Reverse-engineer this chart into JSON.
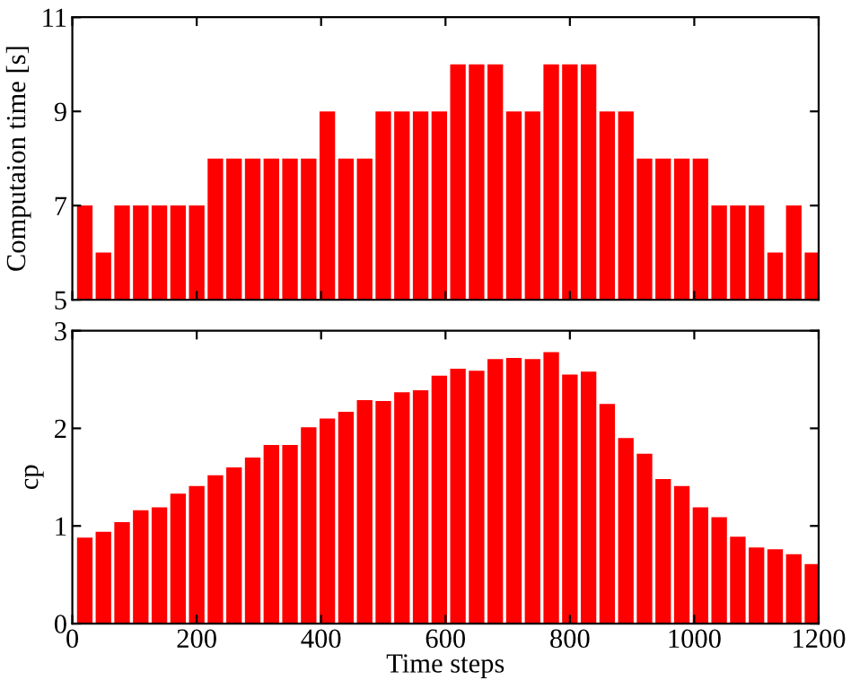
{
  "chart_data": [
    {
      "type": "bar",
      "ylabel": "Computaion time [s]",
      "x": [
        20,
        50,
        80,
        110,
        140,
        170,
        200,
        230,
        260,
        290,
        320,
        350,
        380,
        410,
        440,
        470,
        500,
        530,
        560,
        590,
        620,
        650,
        680,
        710,
        740,
        770,
        800,
        830,
        860,
        890,
        920,
        950,
        980,
        1010,
        1040,
        1070,
        1100,
        1130,
        1160,
        1190
      ],
      "series": [
        {
          "color": "#ff0000",
          "values": [
            7,
            6,
            7,
            7,
            7,
            7,
            7,
            8,
            8,
            8,
            8,
            8,
            8,
            9,
            8,
            8,
            9,
            9,
            9,
            9,
            10,
            10,
            10,
            9,
            9,
            10,
            10,
            10,
            9,
            9,
            8,
            8,
            8,
            8,
            7,
            7,
            7,
            6,
            7,
            6
          ]
        }
      ],
      "xlim": [
        0,
        1200
      ],
      "xticks": [
        0,
        200,
        400,
        600,
        800,
        1000,
        1200
      ],
      "ylim": [
        5,
        11
      ],
      "yticks": [
        5,
        7,
        9,
        11
      ],
      "tick_labels": "y",
      "grid": false,
      "legend": false
    },
    {
      "type": "bar",
      "ylabel": "cp",
      "xlabel": "Time steps",
      "x": [
        20,
        50,
        80,
        110,
        140,
        170,
        200,
        230,
        260,
        290,
        320,
        350,
        380,
        410,
        440,
        470,
        500,
        530,
        560,
        590,
        620,
        650,
        680,
        710,
        740,
        770,
        800,
        830,
        860,
        890,
        920,
        950,
        980,
        1010,
        1040,
        1070,
        1100,
        1130,
        1160,
        1190
      ],
      "series": [
        {
          "color": "#ff0000",
          "values": [
            0.88,
            0.94,
            1.04,
            1.16,
            1.19,
            1.33,
            1.41,
            1.52,
            1.6,
            1.7,
            1.83,
            1.83,
            2.01,
            2.1,
            2.17,
            2.29,
            2.28,
            2.37,
            2.39,
            2.54,
            2.61,
            2.59,
            2.71,
            2.72,
            2.71,
            2.78,
            2.55,
            2.58,
            2.25,
            1.9,
            1.74,
            1.48,
            1.41,
            1.19,
            1.09,
            0.89,
            0.78,
            0.76,
            0.71,
            0.61
          ]
        }
      ],
      "xlim": [
        0,
        1200
      ],
      "xticks": [
        0,
        200,
        400,
        600,
        800,
        1000,
        1200
      ],
      "ylim": [
        0,
        3
      ],
      "yticks": [
        0,
        1,
        2,
        3
      ],
      "grid": false,
      "legend": false
    }
  ]
}
